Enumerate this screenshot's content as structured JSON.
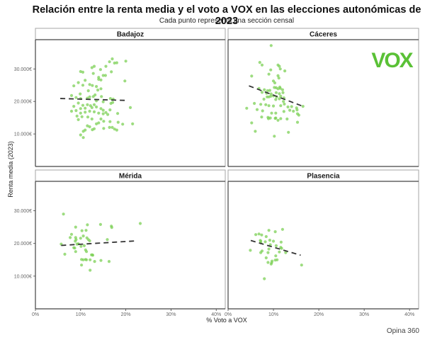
{
  "chart_data": {
    "type": "scatter",
    "title": "Relación entre la renta media y el voto a VOX en las elecciones autonómicas de 2023",
    "subtitle": "Cada punto representa una sección censal",
    "xlabel": "% Voto a VOX",
    "ylabel": "Renta media (2023)",
    "caption": "Opina 360",
    "logo": "VOX",
    "point_color": "#7cd056",
    "trend_color": "#333333",
    "logo_color": "#5ac136",
    "xlim": [
      0,
      42
    ],
    "ylim": [
      0,
      39000
    ],
    "x_ticks": [
      "0%",
      "10%",
      "20%",
      "30%",
      "40%"
    ],
    "x_tick_values": [
      0,
      10,
      20,
      30,
      40
    ],
    "y_ticks": [
      "10.000€",
      "20.000€",
      "30.000€"
    ],
    "y_tick_values": [
      10000,
      20000,
      30000
    ],
    "grid": false,
    "facets": [
      {
        "name": "Badajoz",
        "trend": {
          "x": [
            5.5,
            20.5
          ],
          "y": [
            20900,
            20300
          ]
        },
        "points": [
          [
            10.0,
            29200
          ],
          [
            10.5,
            29000
          ],
          [
            12.5,
            30400
          ],
          [
            13.0,
            30800
          ],
          [
            14.4,
            29800
          ],
          [
            15.6,
            30800
          ],
          [
            16.4,
            32200
          ],
          [
            17.0,
            33100
          ],
          [
            17.5,
            31800
          ],
          [
            18.0,
            31900
          ],
          [
            20.0,
            32400
          ],
          [
            12.8,
            28600
          ],
          [
            15.5,
            28000
          ],
          [
            14.0,
            27400
          ],
          [
            14.5,
            26600
          ],
          [
            19.8,
            26300
          ],
          [
            16.8,
            29100
          ],
          [
            15.0,
            28000
          ],
          [
            8.5,
            24800
          ],
          [
            9.5,
            25800
          ],
          [
            10.5,
            25000
          ],
          [
            11.0,
            26500
          ],
          [
            12.0,
            25200
          ],
          [
            13.5,
            24600
          ],
          [
            14.0,
            26800
          ],
          [
            12.6,
            24900
          ],
          [
            13.8,
            23500
          ],
          [
            14.5,
            23900
          ],
          [
            11.7,
            23300
          ],
          [
            9.9,
            22300
          ],
          [
            13.2,
            22000
          ],
          [
            8.0,
            21800
          ],
          [
            9.0,
            21200
          ],
          [
            10.0,
            20900
          ],
          [
            11.5,
            21000
          ],
          [
            12.0,
            21400
          ],
          [
            12.8,
            21500
          ],
          [
            13.5,
            20200
          ],
          [
            14.6,
            21500
          ],
          [
            16.6,
            20900
          ],
          [
            17.2,
            20700
          ],
          [
            15.0,
            19900
          ],
          [
            16.7,
            19400
          ],
          [
            17.1,
            19700
          ],
          [
            8.5,
            18500
          ],
          [
            9.5,
            19500
          ],
          [
            10.5,
            18800
          ],
          [
            11.5,
            19000
          ],
          [
            12.2,
            18700
          ],
          [
            13.0,
            19000
          ],
          [
            13.5,
            18300
          ],
          [
            10.0,
            17800
          ],
          [
            11.0,
            17900
          ],
          [
            12.5,
            18100
          ],
          [
            14.5,
            17800
          ],
          [
            15.0,
            17300
          ],
          [
            16.5,
            17400
          ],
          [
            15.6,
            16600
          ],
          [
            18.2,
            16300
          ],
          [
            21.0,
            18100
          ],
          [
            8.0,
            17000
          ],
          [
            9.0,
            17200
          ],
          [
            10.0,
            16400
          ],
          [
            11.0,
            16700
          ],
          [
            12.0,
            17000
          ],
          [
            13.0,
            16800
          ],
          [
            14.0,
            16400
          ],
          [
            15.0,
            16200
          ],
          [
            16.0,
            16000
          ],
          [
            10.3,
            15300
          ],
          [
            11.6,
            15200
          ],
          [
            9.2,
            15500
          ],
          [
            9.5,
            14400
          ],
          [
            12.5,
            14600
          ],
          [
            14.5,
            14600
          ],
          [
            15.1,
            13900
          ],
          [
            14.0,
            13400
          ],
          [
            13.5,
            13100
          ],
          [
            16.5,
            13800
          ],
          [
            18.3,
            13600
          ],
          [
            19.3,
            13000
          ],
          [
            21.5,
            13100
          ],
          [
            11.5,
            12500
          ],
          [
            11.0,
            11200
          ],
          [
            12.6,
            11300
          ],
          [
            13.0,
            11600
          ],
          [
            15.1,
            11700
          ],
          [
            17.0,
            12000
          ],
          [
            17.5,
            11500
          ],
          [
            18.0,
            11200
          ],
          [
            10.6,
            10800
          ],
          [
            10.0,
            9700
          ],
          [
            10.6,
            8900
          ],
          [
            12.0,
            12200
          ],
          [
            16.4,
            12000
          ]
        ]
      },
      {
        "name": "Cáceres",
        "trend": {
          "x": [
            4.6,
            16.5
          ],
          "y": [
            24800,
            18500
          ]
        },
        "points": [
          [
            9.5,
            37200
          ],
          [
            7.0,
            32000
          ],
          [
            7.5,
            31200
          ],
          [
            9.4,
            29700
          ],
          [
            11.0,
            31200
          ],
          [
            11.3,
            30800
          ],
          [
            11.5,
            30000
          ],
          [
            12.5,
            29400
          ],
          [
            9.0,
            28400
          ],
          [
            11.0,
            27900
          ],
          [
            11.2,
            27200
          ],
          [
            5.2,
            27800
          ],
          [
            10.0,
            26300
          ],
          [
            10.3,
            25700
          ],
          [
            11.0,
            23900
          ],
          [
            11.4,
            24400
          ],
          [
            10.6,
            24200
          ],
          [
            6.8,
            24000
          ],
          [
            8.0,
            23600
          ],
          [
            8.7,
            23300
          ],
          [
            9.2,
            23400
          ],
          [
            10.2,
            24300
          ],
          [
            11.5,
            24000
          ],
          [
            12.0,
            23600
          ],
          [
            7.5,
            22800
          ],
          [
            8.5,
            22500
          ],
          [
            9.5,
            22300
          ],
          [
            10.6,
            22700
          ],
          [
            11.3,
            22400
          ],
          [
            12.1,
            22700
          ],
          [
            8.6,
            21400
          ],
          [
            9.0,
            21400
          ],
          [
            9.4,
            21600
          ],
          [
            10.0,
            21700
          ],
          [
            10.7,
            21400
          ],
          [
            11.6,
            21600
          ],
          [
            7.9,
            20700
          ],
          [
            10.5,
            20600
          ],
          [
            11.3,
            20800
          ],
          [
            12.3,
            21100
          ],
          [
            12.2,
            20000
          ],
          [
            5.8,
            19400
          ],
          [
            7.2,
            19100
          ],
          [
            8.3,
            19000
          ],
          [
            9.0,
            18700
          ],
          [
            10.0,
            18600
          ],
          [
            11.6,
            18700
          ],
          [
            12.4,
            19200
          ],
          [
            13.2,
            18300
          ],
          [
            14.0,
            18400
          ],
          [
            15.1,
            18000
          ],
          [
            16.5,
            18500
          ],
          [
            4.1,
            17900
          ],
          [
            6.4,
            17500
          ],
          [
            7.6,
            17100
          ],
          [
            9.6,
            16400
          ],
          [
            10.5,
            16400
          ],
          [
            12.3,
            16900
          ],
          [
            13.6,
            17300
          ],
          [
            14.4,
            17000
          ],
          [
            15.2,
            17400
          ],
          [
            15.3,
            16200
          ],
          [
            7.4,
            15200
          ],
          [
            8.8,
            15100
          ],
          [
            8.9,
            14700
          ],
          [
            9.3,
            14900
          ],
          [
            10.4,
            14800
          ],
          [
            11.6,
            14700
          ],
          [
            13.0,
            14600
          ],
          [
            15.3,
            13600
          ],
          [
            5.2,
            13400
          ],
          [
            10.5,
            14900
          ],
          [
            11.0,
            14200
          ],
          [
            6.0,
            10800
          ],
          [
            10.2,
            9300
          ],
          [
            15.6,
            15800
          ],
          [
            13.3,
            10500
          ]
        ]
      },
      {
        "name": "Mérida",
        "trend": {
          "x": [
            5.7,
            22.5
          ],
          "y": [
            19400,
            20800
          ]
        },
        "points": [
          [
            6.2,
            29000
          ],
          [
            8.9,
            25000
          ],
          [
            11.5,
            25700
          ],
          [
            14.4,
            25800
          ],
          [
            16.8,
            25300
          ],
          [
            16.9,
            24900
          ],
          [
            23.2,
            26100
          ],
          [
            10.3,
            23900
          ],
          [
            11.2,
            24000
          ],
          [
            8.0,
            22800
          ],
          [
            7.7,
            21800
          ],
          [
            8.9,
            21800
          ],
          [
            9.0,
            21200
          ],
          [
            10.6,
            22300
          ],
          [
            11.4,
            21700
          ],
          [
            10.0,
            21600
          ],
          [
            11.7,
            21200
          ],
          [
            12.0,
            20800
          ],
          [
            15.9,
            21200
          ],
          [
            8.8,
            20700
          ],
          [
            5.7,
            19800
          ],
          [
            9.2,
            19800
          ],
          [
            9.5,
            19900
          ],
          [
            10.1,
            19100
          ],
          [
            10.8,
            19300
          ],
          [
            11.1,
            18000
          ],
          [
            11.3,
            17500
          ],
          [
            8.5,
            18700
          ],
          [
            8.7,
            18600
          ],
          [
            8.9,
            17500
          ],
          [
            6.5,
            16700
          ],
          [
            12.4,
            16500
          ],
          [
            12.7,
            16400
          ],
          [
            12.6,
            16500
          ],
          [
            10.2,
            15100
          ],
          [
            10.6,
            15000
          ],
          [
            11.1,
            15100
          ],
          [
            11.3,
            15000
          ],
          [
            12.1,
            15000
          ],
          [
            13.1,
            14500
          ],
          [
            14.5,
            14800
          ],
          [
            16.3,
            14500
          ],
          [
            10.2,
            13400
          ],
          [
            12.1,
            11800
          ]
        ]
      },
      {
        "name": "Plasencia",
        "trend": {
          "x": [
            5.0,
            16.0
          ],
          "y": [
            20900,
            16400
          ]
        },
        "points": [
          [
            9.0,
            24000
          ],
          [
            10.4,
            23600
          ],
          [
            12.0,
            24300
          ],
          [
            6.1,
            22700
          ],
          [
            6.8,
            22900
          ],
          [
            7.4,
            22600
          ],
          [
            8.4,
            22100
          ],
          [
            7.1,
            20900
          ],
          [
            7.2,
            20700
          ],
          [
            8.2,
            20500
          ],
          [
            9.2,
            21000
          ],
          [
            10.0,
            20700
          ],
          [
            11.7,
            20400
          ],
          [
            7.2,
            20200
          ],
          [
            9.3,
            19600
          ],
          [
            10.6,
            19300
          ],
          [
            11.6,
            18800
          ],
          [
            11.8,
            18500
          ],
          [
            9.0,
            18300
          ],
          [
            11.3,
            17400
          ],
          [
            12.7,
            17200
          ],
          [
            4.9,
            17900
          ],
          [
            7.5,
            17700
          ],
          [
            7.2,
            17200
          ],
          [
            8.8,
            17200
          ],
          [
            10.5,
            16200
          ],
          [
            8.4,
            15600
          ],
          [
            9.7,
            14600
          ],
          [
            10.4,
            14900
          ],
          [
            10.8,
            15000
          ],
          [
            8.8,
            14200
          ],
          [
            9.6,
            14100
          ],
          [
            9.5,
            13700
          ],
          [
            16.2,
            13400
          ],
          [
            8.0,
            9200
          ]
        ]
      }
    ]
  }
}
